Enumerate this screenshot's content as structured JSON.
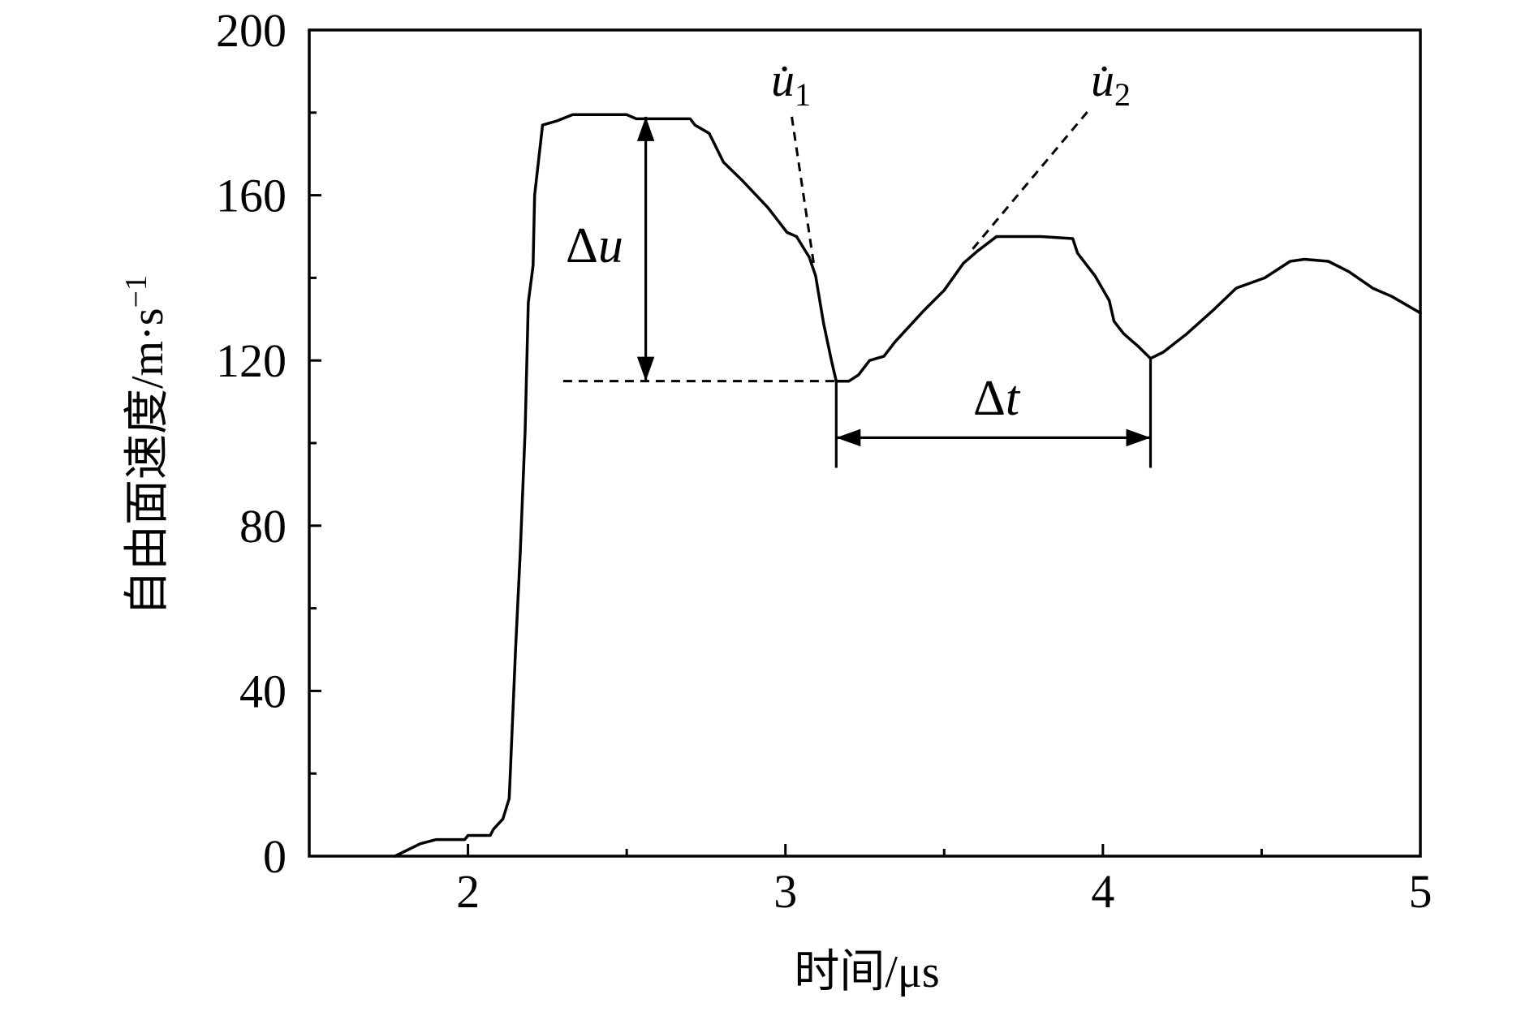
{
  "chart_data": {
    "type": "line",
    "title": "",
    "xlabel": "时间/μs",
    "ylabel": "自由面速度/m·s",
    "ylabel_superscript": "−1",
    "xlim": [
      1.5,
      5
    ],
    "ylim": [
      0,
      200
    ],
    "x_ticks": [
      2,
      3,
      4,
      5
    ],
    "x_minor_ticks": [
      2.5,
      3.5,
      4.5
    ],
    "y_ticks": [
      0,
      40,
      80,
      120,
      160,
      200
    ],
    "y_minor_ticks": [
      20,
      60,
      100,
      140,
      180
    ],
    "grid": false,
    "legend": "none",
    "series": [
      {
        "x": [
          1.77,
          1.85,
          1.9,
          1.99,
          2.0,
          2.07,
          2.08,
          2.11,
          2.13,
          2.14,
          2.15,
          2.165,
          2.18,
          2.19,
          2.205,
          2.21,
          2.235,
          2.28,
          2.33,
          2.5,
          2.53,
          2.7,
          2.715,
          2.76,
          2.805,
          2.865,
          2.945,
          3.005,
          3.035,
          3.075,
          3.095,
          3.12,
          3.145,
          3.16,
          3.2,
          3.23,
          3.265,
          3.31,
          3.345,
          3.435,
          3.5,
          3.56,
          3.605,
          3.665,
          3.805,
          3.905,
          3.92,
          3.975,
          4.02,
          4.035,
          4.065,
          4.11,
          4.15,
          4.19,
          4.265,
          4.345,
          4.42,
          4.51,
          4.59,
          4.635,
          4.71,
          4.775,
          4.85,
          4.91,
          5.0
        ],
        "y": [
          0,
          3,
          4,
          4,
          5,
          5,
          6.5,
          9,
          14,
          32,
          50,
          74,
          103,
          134,
          143,
          160,
          177,
          178,
          179.5,
          179.5,
          178.5,
          178.5,
          177,
          175,
          168,
          163.5,
          157,
          151,
          150,
          145,
          140.5,
          129,
          120,
          115,
          115,
          116.5,
          120,
          121,
          124.5,
          132,
          137,
          143.5,
          146.5,
          150,
          150,
          149.5,
          146,
          140.5,
          134.5,
          129.5,
          126.5,
          123.5,
          120.5,
          122,
          126.5,
          132,
          137.5,
          140,
          144,
          144.5,
          144,
          141.5,
          137.5,
          135.5,
          131.5
        ]
      }
    ],
    "annotations": {
      "delta_u": {
        "symbol": "Δ",
        "variable": "u",
        "x": 2.56,
        "y_range": [
          115,
          179
        ]
      },
      "reference_level": {
        "y": 115,
        "x_range": [
          2.3,
          3.16
        ]
      },
      "delta_t": {
        "symbol": "Δ",
        "variable": "t",
        "y": 101.3,
        "x_range": [
          3.16,
          4.15
        ],
        "guide_tops": [
          115,
          120.5
        ],
        "guide_bottom": 94
      },
      "u_dot_1": {
        "label": "u̇",
        "subscript": "1",
        "from": [
          3.02,
          179
        ],
        "to": [
          3.09,
          143
        ]
      },
      "u_dot_2": {
        "label": "u̇",
        "subscript": "2",
        "from": [
          3.59,
          147
        ],
        "to": [
          3.96,
          181
        ]
      }
    }
  }
}
